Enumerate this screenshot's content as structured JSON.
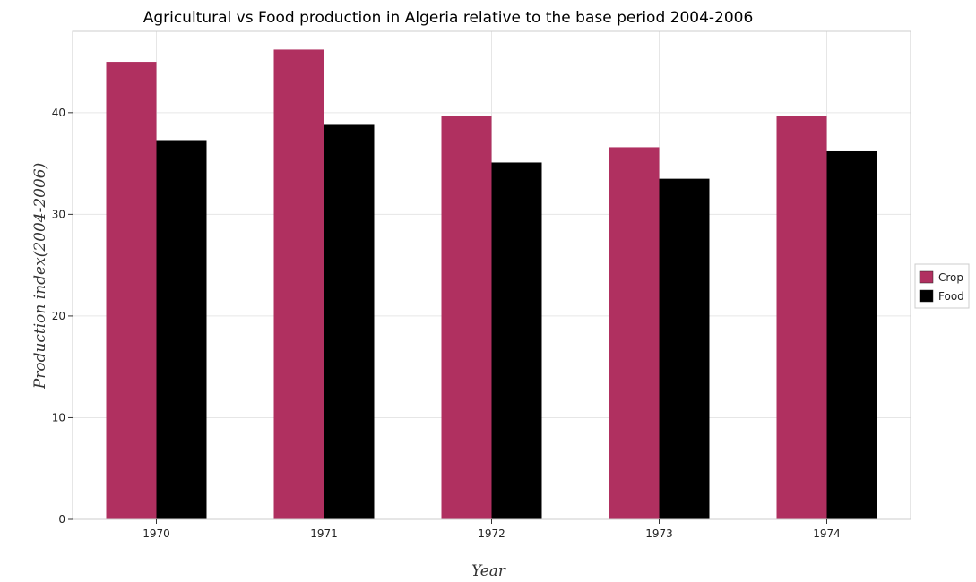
{
  "chart_data": {
    "type": "bar",
    "title": "Agricultural vs Food production in Algeria relative to the base period 2004-2006",
    "xlabel": "Year",
    "ylabel": "Production index(2004-2006)",
    "categories": [
      "1970",
      "1971",
      "1972",
      "1973",
      "1974"
    ],
    "series": [
      {
        "name": "Crop",
        "color": "#b03060",
        "values": [
          45.0,
          46.2,
          39.7,
          36.6,
          39.7
        ]
      },
      {
        "name": "Food",
        "color": "#000000",
        "values": [
          37.3,
          38.8,
          35.1,
          33.5,
          36.2
        ]
      }
    ],
    "ylim": [
      0,
      48
    ],
    "yticks": [
      0,
      10,
      20,
      30,
      40
    ],
    "grid": true,
    "legend_position": "right"
  }
}
